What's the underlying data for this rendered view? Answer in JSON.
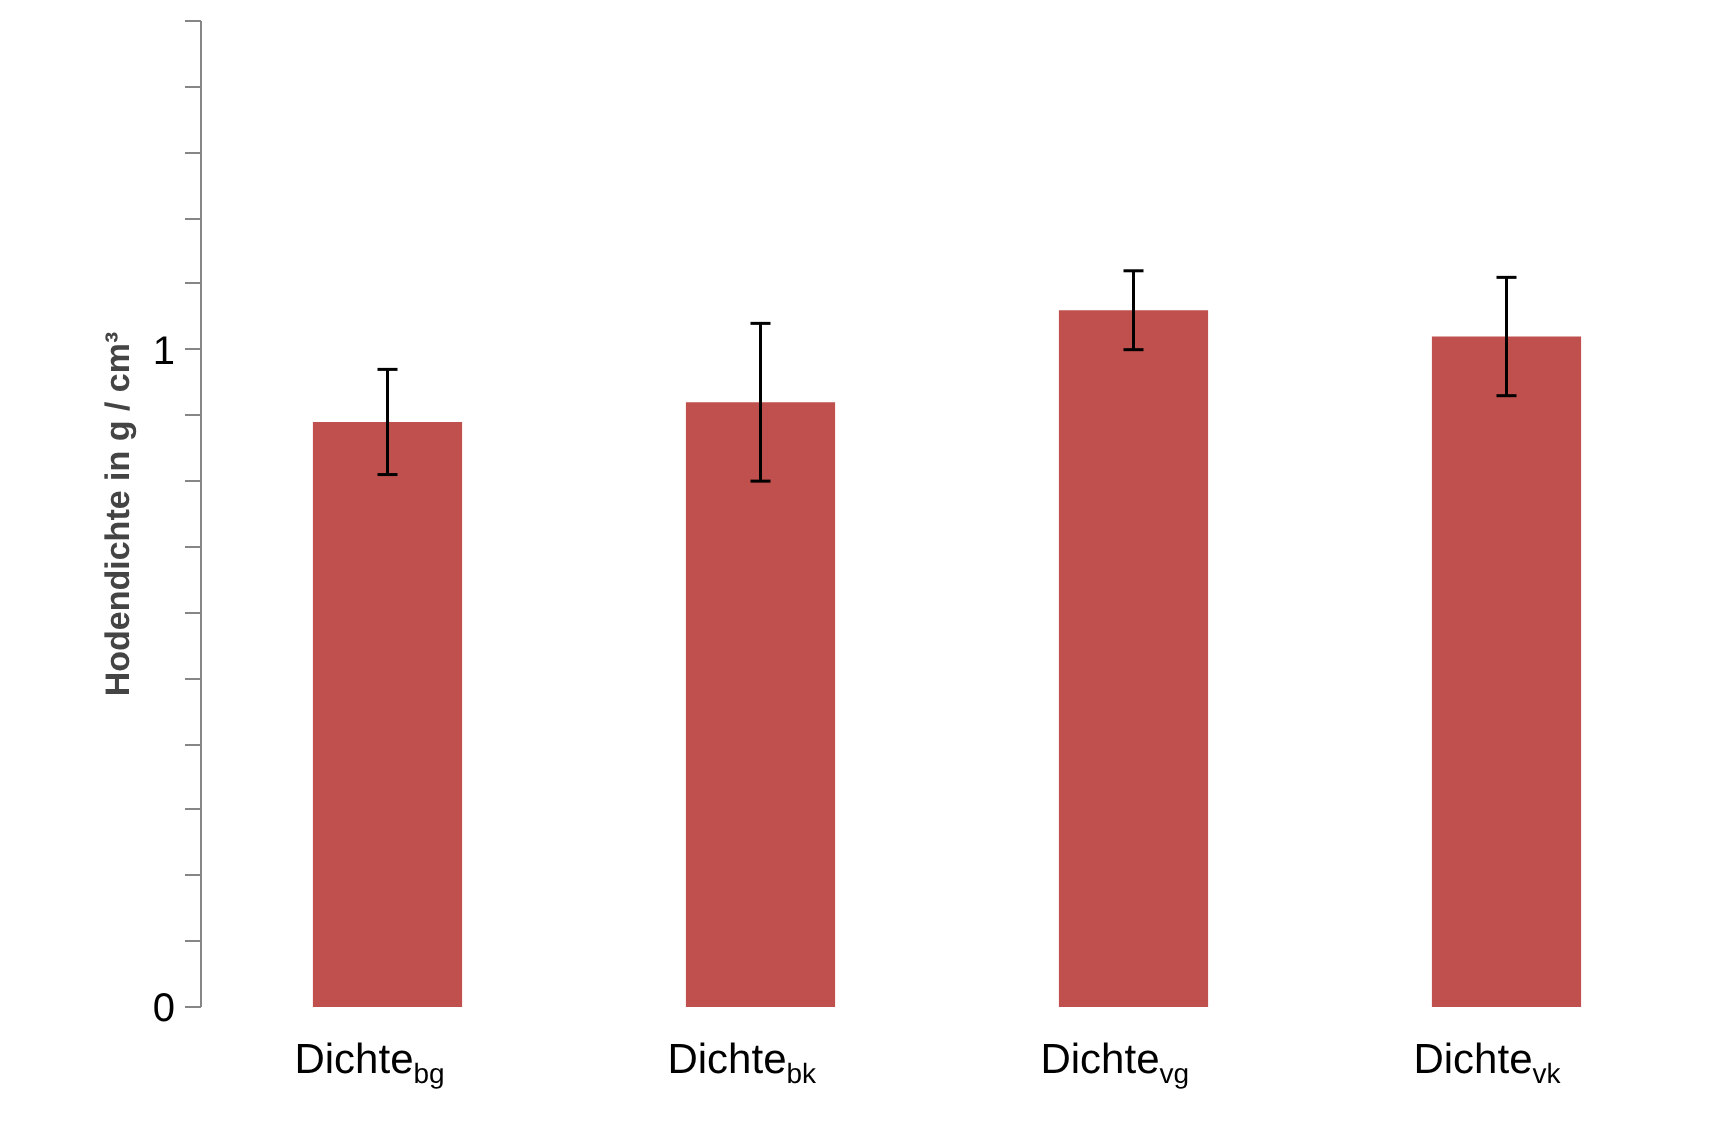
{
  "chart_data": {
    "type": "bar",
    "ylabel": "Hodendichte in g / cm³",
    "categories": [
      "Dichte$_{bg}$",
      "Dichte$_{bk}$",
      "Dichte$_{vg}$",
      "Dichte$_{vk}$"
    ],
    "values": [
      0.89,
      0.92,
      1.06,
      1.02
    ],
    "errors": [
      0.08,
      0.12,
      0.06,
      0.09
    ],
    "color": "#c0504d",
    "ylim": [
      0,
      1.5
    ],
    "yticks": [
      0,
      {
        "value": 0.1,
        "label": null
      },
      {
        "value": 0.2,
        "label": null
      },
      {
        "value": 0.3,
        "label": null
      },
      {
        "value": 0.4,
        "label": null
      },
      {
        "value": 0.5,
        "label": null
      },
      {
        "value": 0.6,
        "label": null
      },
      {
        "value": 0.7,
        "label": null
      },
      {
        "value": 0.8,
        "label": null
      },
      {
        "value": 0.9,
        "label": null
      },
      1,
      {
        "value": 1.1,
        "label": null
      },
      {
        "value": 1.2,
        "label": null
      },
      {
        "value": 1.3,
        "label": null
      },
      {
        "value": 1.4,
        "label": null
      },
      {
        "value": 1.5,
        "label": null
      }
    ],
    "grid": false
  }
}
